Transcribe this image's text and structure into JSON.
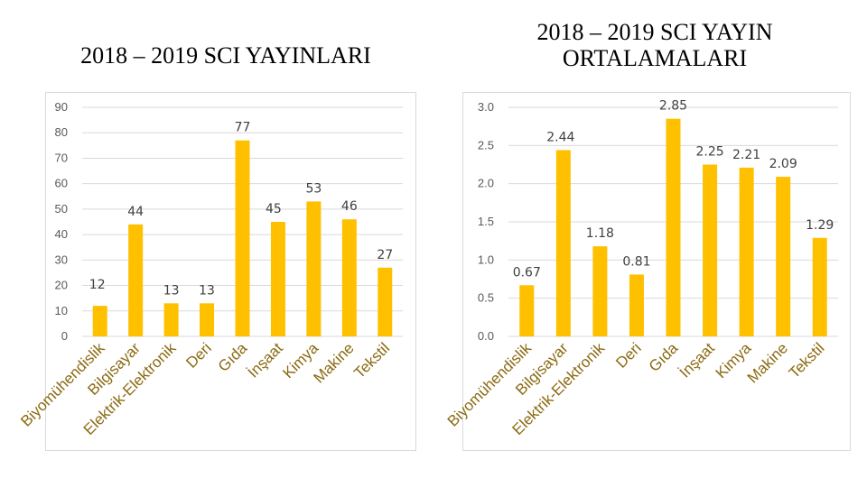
{
  "titles": {
    "left": "2018 – 2019 SCI YAYINLARI",
    "right": "2018 – 2019 SCI YAYIN ORTALAMALARI"
  },
  "colors": {
    "bar": "#FFC000",
    "grid": "#D9D9D9",
    "axis_text": "#595959",
    "category_text": "#8B6A12"
  },
  "chart_data": [
    {
      "type": "bar",
      "title": "2018 – 2019 SCI YAYINLARI",
      "categories": [
        "Biyomühendislik",
        "Bilgisayar",
        "Elektrik-Elektronik",
        "Deri",
        "Gıda",
        "İnşaat",
        "Kimya",
        "Makine",
        "Tekstil"
      ],
      "values": [
        12,
        44,
        13,
        13,
        77,
        45,
        53,
        46,
        27
      ],
      "labels": [
        "12",
        "44",
        "13",
        "13",
        "77",
        "45",
        "53",
        "46",
        "27"
      ],
      "yticks": [
        "0",
        "10",
        "20",
        "30",
        "40",
        "50",
        "60",
        "70",
        "80",
        "90"
      ],
      "ylim": [
        0,
        90
      ],
      "grid": true,
      "xlabel": "",
      "ylabel": ""
    },
    {
      "type": "bar",
      "title": "2018 – 2019 SCI YAYIN ORTALAMALARI",
      "categories": [
        "Biyomühendislik",
        "Bilgisayar",
        "Elektrik-Elektronik",
        "Deri",
        "Gıda",
        "İnşaat",
        "Kimya",
        "Makine",
        "Tekstil"
      ],
      "values": [
        0.67,
        2.44,
        1.18,
        0.81,
        2.85,
        2.25,
        2.21,
        2.09,
        1.29
      ],
      "labels": [
        "0.67",
        "2.44",
        "1.18",
        "0.81",
        "2.85",
        "2.25",
        "2.21",
        "2.09",
        "1.29"
      ],
      "yticks": [
        "0.0",
        "0.5",
        "1.0",
        "1.5",
        "2.0",
        "2.5",
        "3.0"
      ],
      "ylim": [
        0,
        3
      ],
      "grid": true,
      "xlabel": "",
      "ylabel": ""
    }
  ]
}
